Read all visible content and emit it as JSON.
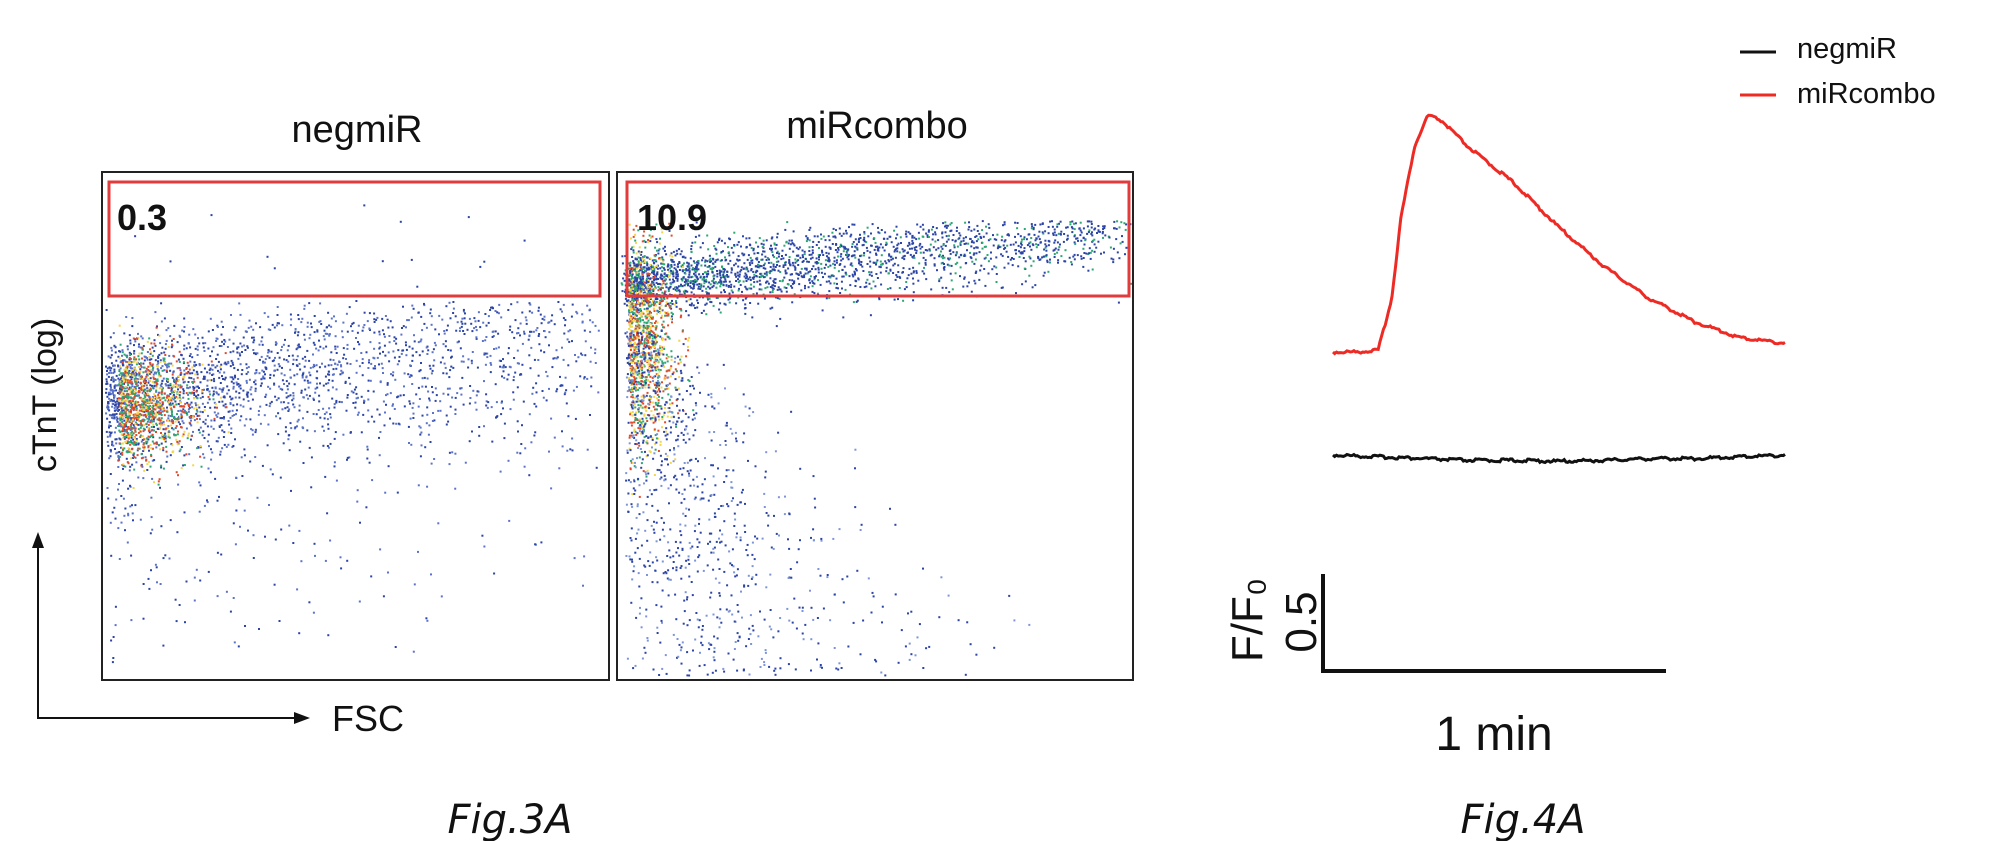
{
  "fig3": {
    "caption": "Fig.3A",
    "y_axis_label": "cTnT (log)",
    "x_axis_label": "FSC"
  },
  "fig4": {
    "caption": "Fig.4A",
    "scale_bar_y_value": "0.5",
    "scale_bar_y_unit": "F/F₀",
    "scale_bar_x_label": "1 min"
  },
  "colors": {
    "gate": "#e23b3b",
    "panel_border": "#222222",
    "negmiR": "#111111",
    "miRcombo": "#ee2a24",
    "density_low": "#2b44a6",
    "density_mid": "#2ca874",
    "density_high": "#f3d64a",
    "density_peak": "#e24a2a"
  },
  "chart_data": [
    {
      "type": "scatter",
      "title": "negmiR",
      "xlabel": "FSC",
      "ylabel": "cTnT (log)",
      "gate_percent": "0.3",
      "points": "density cloud concentrated at low FSC / mid cTnT; sparse spread toward high FSC; very few events inside the top gate"
    },
    {
      "type": "scatter",
      "title": "miRcombo",
      "xlabel": "FSC",
      "ylabel": "cTnT (log)",
      "gate_percent": "10.9",
      "points": "dense cluster at low FSC extending upward into the gate; a band of events inside the top gate spanning increasing FSC"
    },
    {
      "type": "line",
      "xlabel": "",
      "ylabel": "",
      "legend_position": "top-right",
      "series": [
        {
          "name": "negmiR",
          "color": "#111111",
          "x": [
            0,
            0.1,
            0.2,
            0.3,
            0.4,
            0.5,
            0.6,
            0.7,
            0.8,
            0.9,
            1.0
          ],
          "y": [
            0.0,
            -0.01,
            -0.02,
            -0.03,
            -0.03,
            -0.035,
            -0.03,
            -0.02,
            -0.02,
            -0.01,
            0.0
          ]
        },
        {
          "name": "miRcombo",
          "color": "#ee2a24",
          "x": [
            0,
            0.05,
            0.1,
            0.13,
            0.15,
            0.18,
            0.21,
            0.24,
            0.3,
            0.4,
            0.5,
            0.6,
            0.7,
            0.8,
            0.9,
            1.0
          ],
          "y": [
            0.0,
            0.0,
            0.01,
            0.3,
            0.75,
            1.15,
            1.33,
            1.3,
            1.15,
            0.95,
            0.7,
            0.48,
            0.3,
            0.17,
            0.08,
            0.05
          ]
        }
      ]
    }
  ]
}
